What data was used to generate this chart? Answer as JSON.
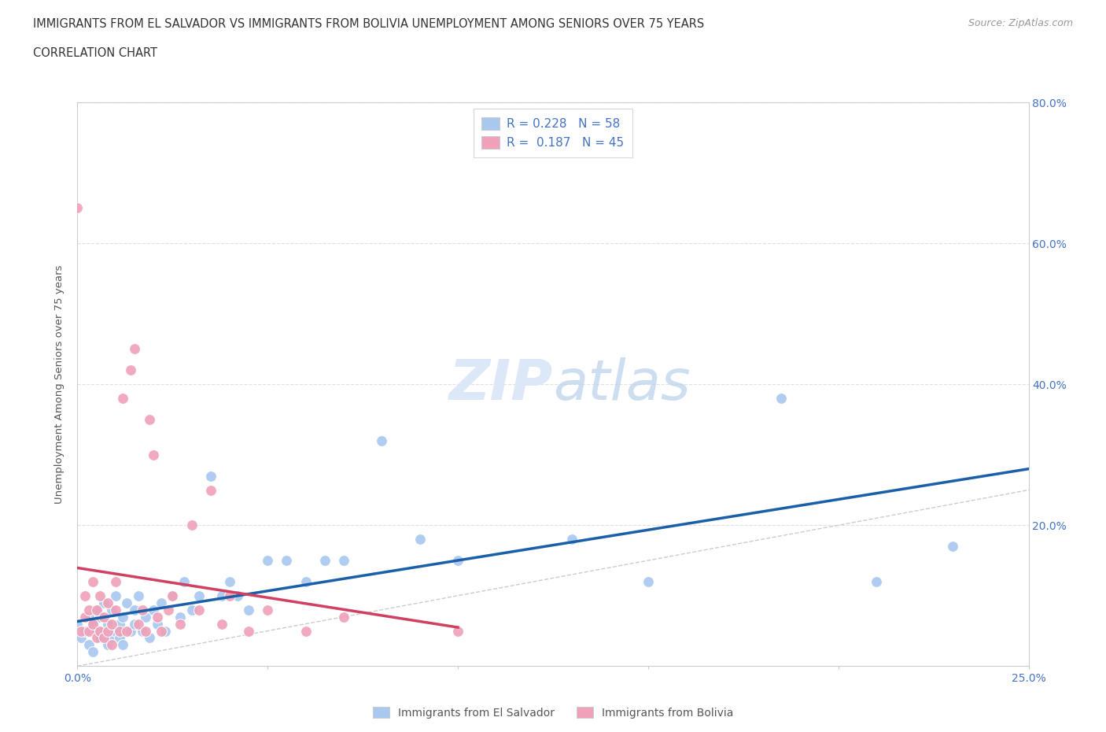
{
  "title_line1": "IMMIGRANTS FROM EL SALVADOR VS IMMIGRANTS FROM BOLIVIA UNEMPLOYMENT AMONG SENIORS OVER 75 YEARS",
  "title_line2": "CORRELATION CHART",
  "source_text": "Source: ZipAtlas.com",
  "ylabel": "Unemployment Among Seniors over 75 years",
  "xlim": [
    0.0,
    0.25
  ],
  "ylim": [
    0.0,
    0.8
  ],
  "xticks": [
    0.0,
    0.05,
    0.1,
    0.15,
    0.2,
    0.25
  ],
  "xticklabels": [
    "0.0%",
    "",
    "",
    "",
    "",
    "25.0%"
  ],
  "yticks": [
    0.0,
    0.2,
    0.4,
    0.6,
    0.8
  ],
  "yticklabels": [
    "",
    "20.0%",
    "40.0%",
    "60.0%",
    "80.0%"
  ],
  "r_blue": 0.228,
  "n_blue": 58,
  "r_pink": 0.187,
  "n_pink": 45,
  "blue_color": "#a8c8f0",
  "pink_color": "#f0a0b8",
  "trend_blue": "#1a5fa8",
  "trend_pink": "#d04060",
  "diagonal_color": "#cccccc",
  "blue_scatter_x": [
    0.0,
    0.001,
    0.002,
    0.003,
    0.003,
    0.004,
    0.004,
    0.005,
    0.005,
    0.006,
    0.006,
    0.007,
    0.007,
    0.008,
    0.008,
    0.009,
    0.009,
    0.01,
    0.01,
    0.011,
    0.011,
    0.012,
    0.012,
    0.013,
    0.014,
    0.015,
    0.015,
    0.016,
    0.017,
    0.018,
    0.019,
    0.02,
    0.021,
    0.022,
    0.023,
    0.025,
    0.027,
    0.028,
    0.03,
    0.032,
    0.035,
    0.038,
    0.04,
    0.042,
    0.045,
    0.05,
    0.055,
    0.06,
    0.065,
    0.07,
    0.08,
    0.09,
    0.1,
    0.13,
    0.15,
    0.185,
    0.21,
    0.23
  ],
  "blue_scatter_y": [
    0.06,
    0.04,
    0.05,
    0.07,
    0.03,
    0.06,
    0.02,
    0.05,
    0.08,
    0.04,
    0.07,
    0.05,
    0.09,
    0.03,
    0.06,
    0.04,
    0.08,
    0.05,
    0.1,
    0.04,
    0.06,
    0.07,
    0.03,
    0.09,
    0.05,
    0.08,
    0.06,
    0.1,
    0.05,
    0.07,
    0.04,
    0.08,
    0.06,
    0.09,
    0.05,
    0.1,
    0.07,
    0.12,
    0.08,
    0.1,
    0.27,
    0.1,
    0.12,
    0.1,
    0.08,
    0.15,
    0.15,
    0.12,
    0.15,
    0.15,
    0.32,
    0.18,
    0.15,
    0.18,
    0.12,
    0.38,
    0.12,
    0.17
  ],
  "pink_scatter_x": [
    0.0,
    0.001,
    0.002,
    0.002,
    0.003,
    0.003,
    0.004,
    0.004,
    0.005,
    0.005,
    0.006,
    0.006,
    0.007,
    0.007,
    0.008,
    0.008,
    0.009,
    0.009,
    0.01,
    0.01,
    0.011,
    0.012,
    0.013,
    0.014,
    0.015,
    0.016,
    0.017,
    0.018,
    0.019,
    0.02,
    0.021,
    0.022,
    0.024,
    0.025,
    0.027,
    0.03,
    0.032,
    0.035,
    0.038,
    0.04,
    0.045,
    0.05,
    0.06,
    0.07,
    0.1
  ],
  "pink_scatter_y": [
    0.65,
    0.05,
    0.07,
    0.1,
    0.05,
    0.08,
    0.06,
    0.12,
    0.04,
    0.08,
    0.05,
    0.1,
    0.04,
    0.07,
    0.05,
    0.09,
    0.03,
    0.06,
    0.08,
    0.12,
    0.05,
    0.38,
    0.05,
    0.42,
    0.45,
    0.06,
    0.08,
    0.05,
    0.35,
    0.3,
    0.07,
    0.05,
    0.08,
    0.1,
    0.06,
    0.2,
    0.08,
    0.25,
    0.06,
    0.1,
    0.05,
    0.08,
    0.05,
    0.07,
    0.05
  ]
}
